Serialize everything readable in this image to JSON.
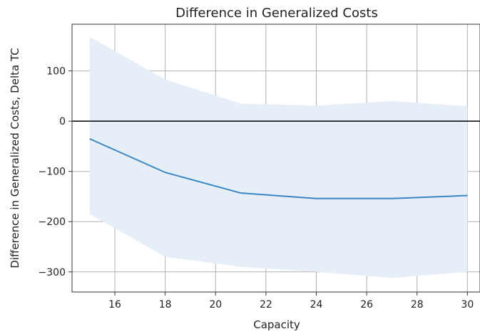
{
  "chart_data": {
    "type": "line",
    "title": "Difference in Generalized Costs",
    "xlabel": "Capacity",
    "ylabel": "Difference in Generalized Costs, Delta TC",
    "xlim": [
      14.3,
      30.5
    ],
    "ylim": [
      -340,
      193
    ],
    "x_ticks": [
      16,
      18,
      20,
      22,
      24,
      26,
      28,
      30
    ],
    "y_ticks": [
      100,
      0,
      -100,
      -200,
      -300
    ],
    "x_tick_labels": [
      "16",
      "18",
      "20",
      "22",
      "24",
      "26",
      "28",
      "30"
    ],
    "y_tick_labels": [
      "100",
      "0",
      "−100",
      "−200",
      "−300"
    ],
    "grid": true,
    "reference_line_y": 0,
    "series": [
      {
        "x": [
          15,
          18,
          21,
          24,
          27,
          30
        ],
        "y": [
          -35,
          -102,
          -143,
          -154,
          -154,
          -148
        ],
        "lower": [
          -185,
          -270,
          -290,
          -300,
          -312,
          -300
        ],
        "upper": [
          168,
          83,
          35,
          31,
          40,
          30
        ],
        "line_color": "#3a87c4",
        "band_color": "#e6eef7"
      }
    ]
  }
}
